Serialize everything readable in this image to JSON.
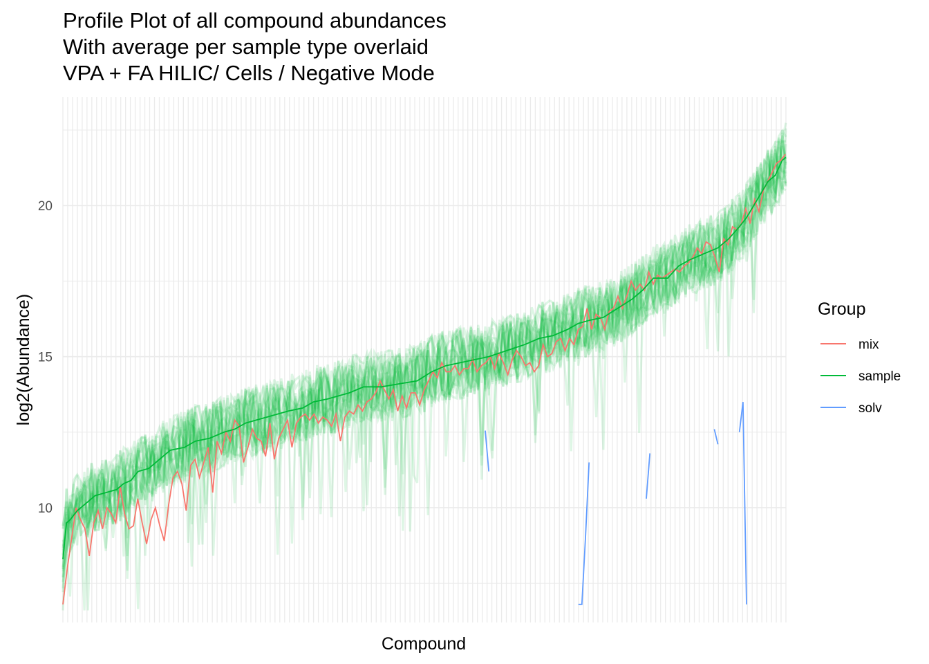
{
  "chart_data": {
    "type": "line",
    "title": [
      "Profile Plot of all compound abundances",
      "With average per sample type overlaid",
      "VPA + FA HILIC/ Cells / Negative Mode"
    ],
    "xlabel": "Compound",
    "ylabel": "log2(Abundance)",
    "x_tick_labels_shown": false,
    "n_compounds": 150,
    "ylim": [
      6.2,
      23.6
    ],
    "y_ticks": [
      10,
      15,
      20
    ],
    "grid": true,
    "legend": {
      "title": "Group",
      "position": "right",
      "entries": [
        {
          "name": "mix",
          "color": "#F8766D"
        },
        {
          "name": "sample",
          "color": "#00BA38"
        },
        {
          "name": "solv",
          "color": "#619CFF"
        }
      ]
    },
    "series": [
      {
        "name": "sample",
        "role": "group average",
        "color": "#00BA38",
        "points": [
          [
            1,
            8.3
          ],
          [
            2,
            9.5
          ],
          [
            3,
            9.6
          ],
          [
            5,
            9.9
          ],
          [
            7,
            10.1
          ],
          [
            10,
            10.4
          ],
          [
            13,
            10.5
          ],
          [
            16,
            10.6
          ],
          [
            18,
            10.8
          ],
          [
            20,
            10.9
          ],
          [
            22,
            11.2
          ],
          [
            25,
            11.3
          ],
          [
            28,
            11.6
          ],
          [
            31,
            11.9
          ],
          [
            35,
            12.0
          ],
          [
            38,
            12.2
          ],
          [
            42,
            12.3
          ],
          [
            46,
            12.5
          ],
          [
            49,
            12.6
          ],
          [
            52,
            12.8
          ],
          [
            55,
            12.9
          ],
          [
            58,
            13.0
          ],
          [
            61,
            13.1
          ],
          [
            64,
            13.2
          ],
          [
            68,
            13.3
          ],
          [
            71,
            13.5
          ],
          [
            75,
            13.6
          ],
          [
            78,
            13.7
          ],
          [
            81,
            13.8
          ],
          [
            85,
            14.0
          ],
          [
            90,
            14.0
          ],
          [
            95,
            14.1
          ],
          [
            100,
            14.2
          ],
          [
            104,
            14.5
          ],
          [
            108,
            14.7
          ],
          [
            112,
            14.8
          ],
          [
            116,
            14.9
          ],
          [
            120,
            15.0
          ],
          [
            125,
            15.2
          ],
          [
            130,
            15.4
          ],
          [
            134,
            15.6
          ],
          [
            138,
            15.7
          ],
          [
            142,
            15.9
          ],
          [
            145,
            16.1
          ],
          [
            148,
            16.2
          ],
          [
            152,
            16.3
          ],
          [
            156,
            16.6
          ],
          [
            160,
            16.9
          ],
          [
            163,
            17.2
          ],
          [
            166,
            17.6
          ],
          [
            170,
            17.6
          ],
          [
            173,
            18.0
          ],
          [
            176,
            18.2
          ],
          [
            180,
            18.4
          ],
          [
            184,
            18.6
          ],
          [
            187,
            18.9
          ],
          [
            190,
            19.3
          ],
          [
            192,
            19.6
          ],
          [
            194,
            20.0
          ],
          [
            196,
            20.4
          ],
          [
            198,
            20.8
          ],
          [
            200,
            21.0
          ],
          [
            202,
            21.5
          ],
          [
            203,
            21.6
          ]
        ]
      },
      {
        "name": "mix",
        "role": "group average",
        "color": "#F8766D",
        "points": [
          [
            1,
            6.8
          ],
          [
            2,
            8.0
          ],
          [
            3,
            9.0
          ],
          [
            4,
            10.0
          ],
          [
            5,
            9.6
          ],
          [
            6,
            9.3
          ],
          [
            7,
            8.4
          ],
          [
            8,
            9.5
          ],
          [
            9,
            9.9
          ],
          [
            10,
            9.3
          ],
          [
            11,
            10.0
          ],
          [
            12,
            9.8
          ],
          [
            13,
            9.5
          ],
          [
            14,
            10.7
          ],
          [
            15,
            9.8
          ],
          [
            16,
            9.3
          ],
          [
            17,
            9.4
          ],
          [
            18,
            10.3
          ],
          [
            19,
            9.5
          ],
          [
            20,
            8.8
          ],
          [
            21,
            9.6
          ],
          [
            22,
            10.0
          ],
          [
            23,
            9.4
          ],
          [
            24,
            8.9
          ],
          [
            25,
            10.1
          ],
          [
            26,
            11.0
          ],
          [
            27,
            11.2
          ],
          [
            28,
            10.8
          ],
          [
            29,
            9.9
          ],
          [
            30,
            11.4
          ],
          [
            31,
            11.6
          ],
          [
            32,
            11.0
          ],
          [
            33,
            11.5
          ],
          [
            34,
            12.0
          ],
          [
            35,
            10.5
          ],
          [
            36,
            12.2
          ],
          [
            37,
            11.8
          ],
          [
            38,
            12.5
          ],
          [
            39,
            12.2
          ],
          [
            40,
            12.9
          ],
          [
            41,
            12.7
          ],
          [
            42,
            11.5
          ],
          [
            43,
            12.0
          ],
          [
            44,
            12.6
          ],
          [
            45,
            12.3
          ],
          [
            46,
            12.2
          ],
          [
            47,
            11.7
          ],
          [
            48,
            12.8
          ],
          [
            49,
            11.6
          ],
          [
            50,
            12.3
          ],
          [
            51,
            12.6
          ],
          [
            52,
            12.9
          ],
          [
            53,
            12.0
          ],
          [
            54,
            12.8
          ],
          [
            55,
            13.0
          ],
          [
            56,
            13.1
          ],
          [
            57,
            12.9
          ],
          [
            58,
            13.1
          ],
          [
            59,
            12.8
          ],
          [
            60,
            13.0
          ],
          [
            61,
            12.9
          ],
          [
            62,
            12.7
          ],
          [
            63,
            13.1
          ],
          [
            64,
            12.2
          ],
          [
            65,
            13.0
          ],
          [
            66,
            13.2
          ],
          [
            67,
            13.1
          ],
          [
            68,
            13.4
          ],
          [
            69,
            13.2
          ],
          [
            70,
            13.5
          ],
          [
            71,
            13.6
          ],
          [
            72,
            13.8
          ],
          [
            73,
            14.2
          ],
          [
            74,
            13.9
          ],
          [
            75,
            13.6
          ],
          [
            76,
            13.9
          ],
          [
            77,
            13.2
          ],
          [
            78,
            13.7
          ],
          [
            79,
            13.3
          ],
          [
            80,
            13.8
          ],
          [
            81,
            13.8
          ],
          [
            82,
            13.4
          ],
          [
            83,
            13.9
          ],
          [
            84,
            14.2
          ],
          [
            85,
            14.5
          ],
          [
            86,
            14.3
          ],
          [
            87,
            14.8
          ],
          [
            88,
            14.5
          ],
          [
            89,
            14.5
          ],
          [
            90,
            14.7
          ],
          [
            91,
            14.4
          ],
          [
            92,
            14.6
          ],
          [
            93,
            14.6
          ],
          [
            94,
            14.9
          ],
          [
            95,
            14.5
          ],
          [
            96,
            14.7
          ],
          [
            97,
            14.8
          ],
          [
            98,
            15.0
          ],
          [
            99,
            14.6
          ],
          [
            100,
            15.1
          ],
          [
            101,
            14.8
          ],
          [
            102,
            14.4
          ],
          [
            103,
            14.9
          ],
          [
            104,
            15.2
          ],
          [
            105,
            15.0
          ],
          [
            106,
            14.7
          ],
          [
            107,
            14.8
          ],
          [
            108,
            14.5
          ],
          [
            109,
            14.7
          ],
          [
            110,
            15.4
          ],
          [
            111,
            15.0
          ],
          [
            112,
            15.1
          ],
          [
            113,
            15.5
          ],
          [
            114,
            15.6
          ],
          [
            115,
            15.2
          ],
          [
            116,
            15.6
          ],
          [
            117,
            15.4
          ],
          [
            118,
            15.9
          ],
          [
            119,
            16.0
          ],
          [
            120,
            16.6
          ],
          [
            121,
            15.9
          ],
          [
            122,
            16.4
          ],
          [
            123,
            16.3
          ],
          [
            124,
            15.9
          ],
          [
            125,
            16.5
          ],
          [
            126,
            16.6
          ],
          [
            127,
            17.0
          ],
          [
            128,
            16.6
          ],
          [
            129,
            17.0
          ],
          [
            130,
            17.5
          ],
          [
            131,
            17.2
          ],
          [
            132,
            17.4
          ],
          [
            133,
            17.2
          ],
          [
            134,
            17.8
          ],
          [
            135,
            17.4
          ],
          [
            136,
            17.7
          ],
          [
            137,
            17.6
          ],
          [
            138,
            17.7
          ],
          [
            139,
            17.8
          ],
          [
            140,
            17.9
          ],
          [
            141,
            17.8
          ],
          [
            142,
            18.0
          ],
          [
            143,
            18.1
          ],
          [
            144,
            18.3
          ],
          [
            145,
            18.6
          ],
          [
            146,
            18.4
          ],
          [
            147,
            18.8
          ],
          [
            148,
            18.7
          ],
          [
            149,
            18.3
          ],
          [
            150,
            17.8
          ],
          [
            151,
            18.9
          ],
          [
            152,
            18.7
          ],
          [
            153,
            19.3
          ],
          [
            154,
            19.2
          ],
          [
            155,
            19.4
          ],
          [
            156,
            19.9
          ],
          [
            157,
            19.4
          ],
          [
            158,
            20.2
          ],
          [
            159,
            19.8
          ],
          [
            160,
            20.5
          ],
          [
            161,
            20.8
          ],
          [
            162,
            21.1
          ],
          [
            163,
            21.4
          ],
          [
            164,
            21.5
          ],
          [
            165,
            21.7
          ]
        ],
        "x_scale": 1.230769
      },
      {
        "name": "solv",
        "role": "group average (fragments)",
        "color": "#619CFF",
        "segments": [
          [
            [
              119,
              12.55
            ],
            [
              120,
              11.2
            ]
          ],
          [
            [
              145,
              6.8
            ],
            [
              146,
              6.8
            ],
            [
              147,
              9.0
            ],
            [
              148,
              11.5
            ]
          ],
          [
            [
              164,
              10.3
            ],
            [
              165,
              11.8
            ]
          ],
          [
            [
              183,
              12.6
            ],
            [
              184,
              12.1
            ]
          ],
          [
            [
              190,
              12.5
            ],
            [
              191,
              13.5
            ],
            [
              192,
              6.8
            ]
          ]
        ]
      }
    ],
    "individual_samples": {
      "group": "sample",
      "color": "#00BA38",
      "count": 20,
      "spread_log2": 0.6
    }
  }
}
